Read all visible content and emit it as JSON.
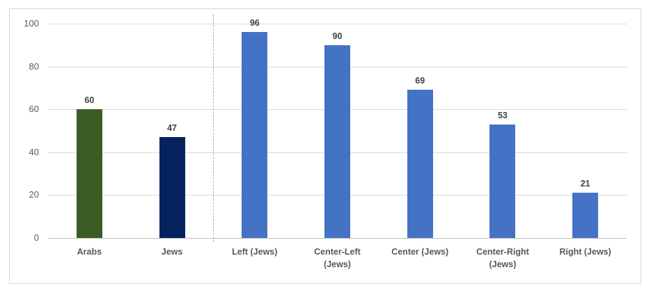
{
  "chart_data": {
    "type": "bar",
    "categories": [
      "Arabs",
      "Jews",
      "Left (Jews)",
      "Center-Left (Jews)",
      "Center (Jews)",
      "Center-Right (Jews)",
      "Right (Jews)"
    ],
    "values": [
      60,
      47,
      96,
      90,
      69,
      53,
      21
    ],
    "data_label_texts": [
      "60",
      "47",
      "96",
      "90",
      "69",
      "53",
      "21"
    ],
    "bar_colors": [
      "#3a5b24",
      "#07235f",
      "#4472c4",
      "#4472c4",
      "#4472c4",
      "#4472c4",
      "#4472c4"
    ],
    "title": "",
    "xlabel": "",
    "ylabel": "",
    "ylim": [
      0,
      100
    ],
    "yticks": [
      0,
      20,
      40,
      60,
      80,
      100
    ],
    "ytick_labels": [
      "0",
      "20",
      "40",
      "60",
      "80",
      "100"
    ],
    "grid": true,
    "legend": false,
    "separator_after_category_index": 1
  },
  "colors": {
    "background": "#ffffff",
    "frame_border": "#d6d6d6",
    "gridline": "#d9d9d9",
    "zero_axis_line": "#bfbfbf",
    "axis_text": "#595959",
    "category_text": "#595959",
    "value_label_text": "#404040",
    "separator_line": "#ababab",
    "bar_blue": "#4472c4",
    "bar_green": "#3a5b24",
    "bar_navy": "#07235f"
  }
}
